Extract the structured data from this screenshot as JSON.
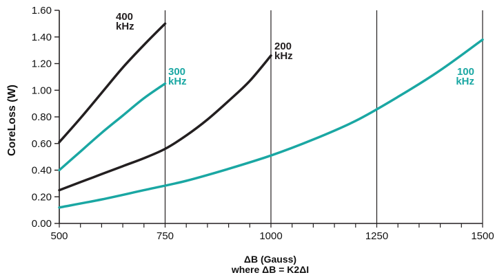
{
  "chart_data": {
    "type": "line",
    "xlabel": [
      "ΔB (Gauss)",
      "where ΔB = K2ΔI"
    ],
    "ylabel": "CoreLoss (W)",
    "xlim": [
      500,
      1500
    ],
    "ylim": [
      0,
      1.6
    ],
    "xticks": [
      "500",
      "750",
      "1000",
      "1250",
      "1500"
    ],
    "yticks": [
      "0.00",
      "0.20",
      "0.40",
      "0.60",
      "0.80",
      "1.00",
      "1.20",
      "1.40",
      "1.60"
    ],
    "grid": {
      "vertical": true,
      "horizontal": false
    },
    "colors": {
      "black": "#231f20",
      "teal": "#1aa7a3"
    },
    "series": [
      {
        "label_lines": [
          "400",
          "kHz"
        ],
        "color": "#231f20",
        "points": [
          [
            500,
            0.61
          ],
          [
            550,
            0.79
          ],
          [
            600,
            0.98
          ],
          [
            650,
            1.17
          ],
          [
            700,
            1.34
          ],
          [
            750,
            1.5
          ]
        ]
      },
      {
        "label_lines": [
          "300",
          "kHz"
        ],
        "color": "#1aa7a3",
        "points": [
          [
            500,
            0.4
          ],
          [
            550,
            0.54
          ],
          [
            600,
            0.68
          ],
          [
            650,
            0.81
          ],
          [
            700,
            0.94
          ],
          [
            750,
            1.05
          ]
        ]
      },
      {
        "label_lines": [
          "200",
          "kHz"
        ],
        "color": "#231f20",
        "points": [
          [
            500,
            0.25
          ],
          [
            550,
            0.31
          ],
          [
            600,
            0.37
          ],
          [
            650,
            0.43
          ],
          [
            700,
            0.49
          ],
          [
            750,
            0.56
          ],
          [
            800,
            0.66
          ],
          [
            850,
            0.78
          ],
          [
            900,
            0.92
          ],
          [
            950,
            1.07
          ],
          [
            1000,
            1.26
          ]
        ]
      },
      {
        "label_lines": [
          "100",
          "kHz"
        ],
        "color": "#1aa7a3",
        "points": [
          [
            500,
            0.12
          ],
          [
            600,
            0.18
          ],
          [
            700,
            0.25
          ],
          [
            800,
            0.32
          ],
          [
            900,
            0.41
          ],
          [
            1000,
            0.51
          ],
          [
            1100,
            0.63
          ],
          [
            1200,
            0.77
          ],
          [
            1300,
            0.95
          ],
          [
            1400,
            1.15
          ],
          [
            1500,
            1.38
          ]
        ]
      }
    ]
  }
}
